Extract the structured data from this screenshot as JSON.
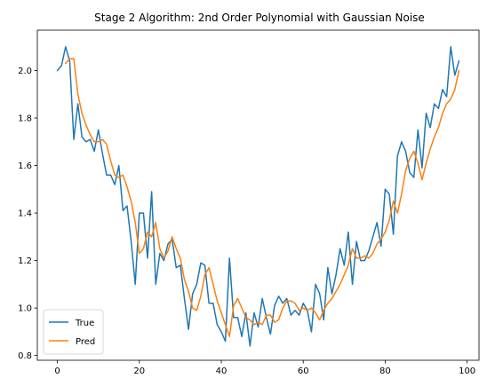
{
  "chart_data": {
    "type": "line",
    "title": "Stage 2 Algorithm: 2nd Order Polynomial with Gaussian Noise",
    "xlabel": "",
    "ylabel": "",
    "xlim": [
      -4.9,
      102.9
    ],
    "ylim": [
      0.78,
      2.17
    ],
    "xticks": [
      0,
      20,
      40,
      60,
      80,
      100
    ],
    "yticks": [
      0.8,
      1.0,
      1.2,
      1.4,
      1.6,
      1.8,
      2.0
    ],
    "grid": false,
    "legend_position": "lower left",
    "series": [
      {
        "name": "True",
        "color": "#1f77b4",
        "x": [
          0,
          1,
          2,
          3,
          4,
          5,
          6,
          7,
          8,
          9,
          10,
          11,
          12,
          13,
          14,
          15,
          16,
          17,
          18,
          19,
          20,
          21,
          22,
          23,
          24,
          25,
          26,
          27,
          28,
          29,
          30,
          31,
          32,
          33,
          34,
          35,
          36,
          37,
          38,
          39,
          40,
          41,
          42,
          43,
          44,
          45,
          46,
          47,
          48,
          49,
          50,
          51,
          52,
          53,
          54,
          55,
          56,
          57,
          58,
          59,
          60,
          61,
          62,
          63,
          64,
          65,
          66,
          67,
          68,
          69,
          70,
          71,
          72,
          73,
          74,
          75,
          76,
          77,
          78,
          79,
          80,
          81,
          82,
          83,
          84,
          85,
          86,
          87,
          88,
          89,
          90,
          91,
          92,
          93,
          94,
          95,
          96,
          97,
          98
        ],
        "y": [
          2.0,
          2.02,
          2.1,
          2.04,
          1.71,
          1.86,
          1.72,
          1.7,
          1.71,
          1.66,
          1.75,
          1.65,
          1.56,
          1.56,
          1.52,
          1.6,
          1.41,
          1.43,
          1.28,
          1.1,
          1.4,
          1.4,
          1.21,
          1.49,
          1.1,
          1.23,
          1.2,
          1.27,
          1.29,
          1.17,
          1.18,
          1.04,
          0.91,
          1.06,
          1.1,
          1.19,
          1.18,
          1.02,
          1.02,
          0.93,
          0.9,
          0.86,
          1.21,
          0.96,
          0.96,
          0.88,
          0.98,
          0.84,
          0.98,
          0.92,
          1.04,
          0.96,
          0.89,
          1.01,
          1.05,
          1.02,
          1.04,
          0.97,
          0.99,
          0.97,
          1.02,
          0.99,
          0.9,
          1.1,
          1.06,
          0.95,
          1.17,
          1.06,
          1.14,
          1.25,
          1.18,
          1.32,
          1.1,
          1.28,
          1.2,
          1.2,
          1.24,
          1.3,
          1.36,
          1.26,
          1.5,
          1.48,
          1.31,
          1.64,
          1.7,
          1.66,
          1.57,
          1.55,
          1.75,
          1.59,
          1.82,
          1.76,
          1.86,
          1.84,
          1.92,
          1.89,
          2.1,
          1.98,
          2.04
        ]
      },
      {
        "name": "Pred",
        "color": "#ff7f0e",
        "x": [
          2,
          3,
          4,
          5,
          6,
          7,
          8,
          9,
          10,
          11,
          12,
          13,
          14,
          15,
          16,
          17,
          18,
          19,
          20,
          21,
          22,
          23,
          24,
          25,
          26,
          27,
          28,
          29,
          30,
          31,
          32,
          33,
          34,
          35,
          36,
          37,
          38,
          39,
          40,
          41,
          42,
          43,
          44,
          45,
          46,
          47,
          48,
          49,
          50,
          51,
          52,
          53,
          54,
          55,
          56,
          57,
          58,
          59,
          60,
          61,
          62,
          63,
          64,
          65,
          66,
          67,
          68,
          69,
          70,
          71,
          72,
          73,
          74,
          75,
          76,
          77,
          78,
          79,
          80,
          81,
          82,
          83,
          84,
          85,
          86,
          87,
          88,
          89,
          90,
          91,
          92,
          93,
          94,
          95,
          96,
          97,
          98
        ],
        "y": [
          2.03,
          2.05,
          2.05,
          1.9,
          1.82,
          1.77,
          1.73,
          1.7,
          1.7,
          1.71,
          1.69,
          1.62,
          1.56,
          1.55,
          1.56,
          1.51,
          1.45,
          1.36,
          1.23,
          1.25,
          1.32,
          1.3,
          1.36,
          1.25,
          1.21,
          1.24,
          1.3,
          1.25,
          1.21,
          1.12,
          1.07,
          1.0,
          0.99,
          1.05,
          1.14,
          1.17,
          1.1,
          1.03,
          0.98,
          0.93,
          0.88,
          1.01,
          1.04,
          1.0,
          0.96,
          0.95,
          0.93,
          0.94,
          0.93,
          0.97,
          0.97,
          0.94,
          0.95,
          1.0,
          1.03,
          1.03,
          1.02,
          0.99,
          1.0,
          0.99,
          1.0,
          0.98,
          0.95,
          0.99,
          1.02,
          1.04,
          1.07,
          1.1,
          1.14,
          1.18,
          1.25,
          1.21,
          1.21,
          1.22,
          1.21,
          1.23,
          1.27,
          1.29,
          1.32,
          1.37,
          1.45,
          1.4,
          1.48,
          1.58,
          1.63,
          1.66,
          1.61,
          1.54,
          1.61,
          1.67,
          1.72,
          1.76,
          1.82,
          1.86,
          1.88,
          1.92,
          2.0
        ]
      }
    ]
  }
}
